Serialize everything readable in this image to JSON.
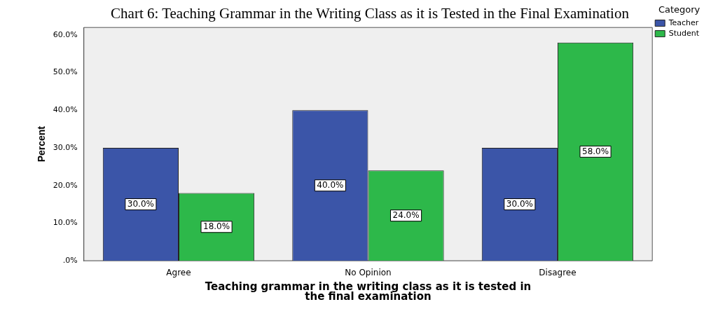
{
  "chart_data": {
    "type": "bar",
    "title": "Chart 6: Teaching Grammar in the Writing Class as it is Tested in the Final Examination",
    "xlabel": "Teaching grammar in the writing class as it is tested in the final examination",
    "ylabel": "Percent",
    "legend_title": "Category",
    "categories": [
      "Agree",
      "No Opinion",
      "Disagree"
    ],
    "series": [
      {
        "name": "Teacher",
        "color": "#3b55a8",
        "values": [
          30,
          40,
          30
        ],
        "value_labels": [
          "30.0%",
          "40.0%",
          "30.0%"
        ]
      },
      {
        "name": "Student",
        "color": "#2db84a",
        "values": [
          18,
          24,
          58
        ],
        "value_labels": [
          "18.0%",
          "24.0%",
          "58.0%"
        ]
      }
    ],
    "ylim": [
      0,
      62
    ],
    "yticks": [
      {
        "value": 0,
        "label": ".0%"
      },
      {
        "value": 10,
        "label": "10.0%"
      },
      {
        "value": 20,
        "label": "20.0%"
      },
      {
        "value": 30,
        "label": "30.0%"
      },
      {
        "value": 40,
        "label": "40.0%"
      },
      {
        "value": 50,
        "label": "50.0%"
      },
      {
        "value": 60,
        "label": "60.0%"
      }
    ],
    "grid": false,
    "legend": "right"
  }
}
